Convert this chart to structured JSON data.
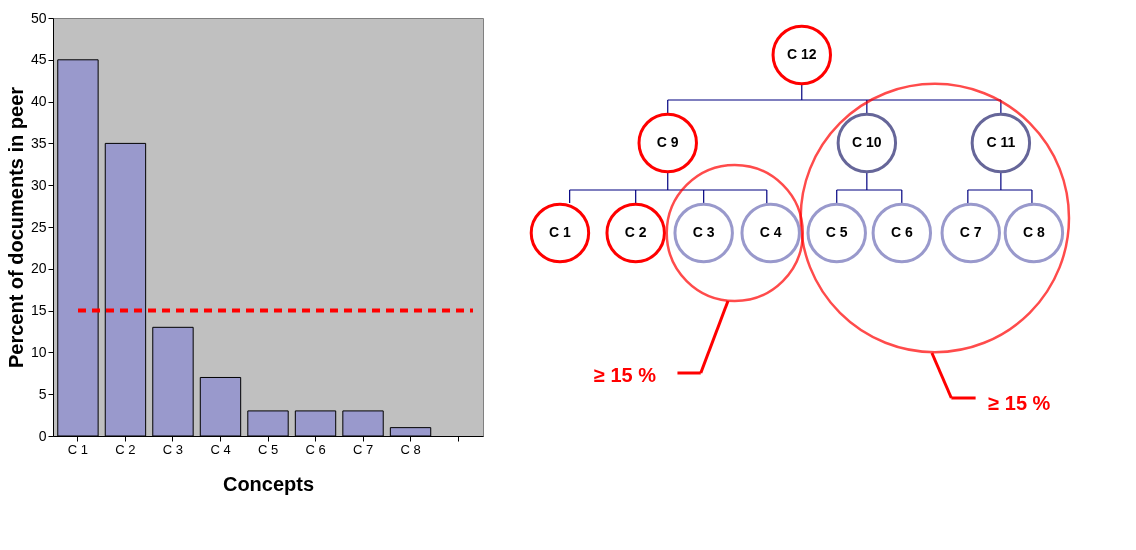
{
  "chart_data": [
    {
      "type": "bar",
      "categories": [
        "C 1",
        "C 2",
        "C 3",
        "C 4",
        "C 5",
        "C 6",
        "C 7",
        "C 8",
        null
      ],
      "values": [
        45,
        35,
        13,
        7,
        3,
        3,
        3,
        1,
        null
      ],
      "color": "#9999cc",
      "ylim": [
        0,
        50
      ],
      "yticks": [
        0,
        5,
        10,
        15,
        20,
        25,
        30,
        35,
        40,
        45,
        50
      ],
      "xlabel": "Concepts",
      "ylabel": "Percent  of documents in peer",
      "grid": false,
      "ref_lines": [
        {
          "axis": "y",
          "value": 15,
          "color": "#ff0000",
          "line_style": "dashed"
        }
      ]
    },
    {
      "type": "other",
      "annotations": [
        "C 12",
        "C 9",
        "C 10",
        "C 11",
        "C 1",
        "C 2",
        "C 3",
        "C 4",
        "C 5",
        "C 6",
        "C 7",
        "C 8",
        "≥ 15 %",
        "≥ 15 %"
      ]
    }
  ]
}
